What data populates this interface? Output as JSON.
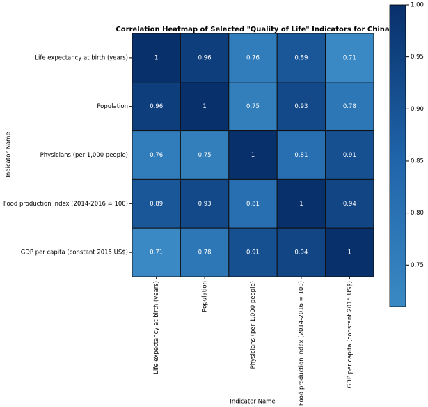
{
  "chart_data": {
    "type": "heatmap",
    "title": "Correlation Heatmap of Selected \"Quality of Life\" Indicators for China",
    "x_label": "Indicator Name",
    "y_label": "Indicator Name",
    "categories": [
      "Life expectancy at birth (years)",
      "Population",
      "Physicians (per 1,000 people)",
      "Food production index (2014-2016 = 100)",
      "GDP per capita (constant 2015 US$)"
    ],
    "z": [
      [
        1,
        0.96,
        0.76,
        0.89,
        0.71
      ],
      [
        0.96,
        1,
        0.75,
        0.93,
        0.78
      ],
      [
        0.76,
        0.75,
        1,
        0.81,
        0.91
      ],
      [
        0.89,
        0.93,
        0.81,
        1,
        0.94
      ],
      [
        0.71,
        0.78,
        0.91,
        0.94,
        1
      ]
    ],
    "zlim": [
      0.71,
      1
    ],
    "zticks": [
      0.75,
      {
        "value": 0.8,
        "label": "0.80"
      },
      0.85,
      {
        "value": 0.9,
        "label": "0.90"
      },
      0.95,
      {
        "value": 1,
        "label": "1.00"
      }
    ],
    "colormap": [
      "#3a89c4",
      "#1f63a8",
      "#08306b"
    ],
    "cell_text_color": "#ffffff"
  }
}
